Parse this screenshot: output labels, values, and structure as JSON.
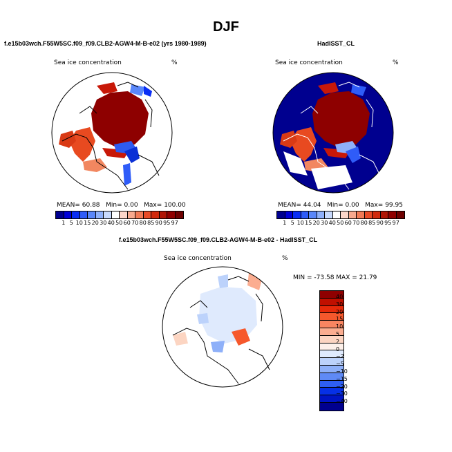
{
  "title": "DJF",
  "panels": {
    "left": {
      "header": "f.e15b03wch.F55W5SC.f09_f09.CLB2-AGW4-M-B-e02 (yrs 1980-1989)",
      "field": "Sea ice concentration",
      "unit": "%",
      "stats": {
        "mean_label": "MEAN=",
        "mean": "60.88",
        "min_label": "Min=",
        "min": "0.00",
        "max_label": "Max=",
        "max": "100.00"
      }
    },
    "right": {
      "header": "HadISST_CL",
      "field": "Sea ice concentration",
      "unit": "%",
      "stats": {
        "mean_label": "MEAN=",
        "mean": "44.04",
        "min_label": "Min=",
        "min": "0.00",
        "max_label": "Max=",
        "max": "99.95"
      }
    },
    "diff": {
      "header": "f.e15b03wch.F55W5SC.f09_f09.CLB2-AGW4-M-B-e02 - HadISST_CL",
      "field": "Sea ice concentration",
      "unit": "%",
      "minmax": "MIN = -73.58 MAX =  21.79"
    }
  },
  "colorbar_levels": [
    "1",
    "5",
    "10",
    "15",
    "20",
    "30",
    "40",
    "50",
    "60",
    "70",
    "80",
    "85",
    "90",
    "95",
    "97"
  ],
  "colorbar_colors": [
    "#00008f",
    "#0000d8",
    "#0a2ef5",
    "#2f5cf8",
    "#5a87fa",
    "#8fb1fb",
    "#c8dafc",
    "#ffffff",
    "#fcd6c9",
    "#f8a98e",
    "#f27a56",
    "#e94a26",
    "#d12a0d",
    "#b01505",
    "#900000",
    "#6e0000"
  ],
  "diff_levels": [
    "40",
    "30",
    "20",
    "15",
    "10",
    "5",
    "2",
    "0",
    "−2",
    "−5",
    "−10",
    "−15",
    "−20",
    "−30",
    "−40"
  ],
  "diff_colors": [
    "#8f0000",
    "#c01000",
    "#e62a0a",
    "#f6582c",
    "#f98561",
    "#fbad90",
    "#fcd5c2",
    "#fdf0ea",
    "#dfeafd",
    "#bcd2fb",
    "#8eb0f9",
    "#5f8af6",
    "#2e5ff3",
    "#0630e6",
    "#0014c4",
    "#00008f"
  ]
}
